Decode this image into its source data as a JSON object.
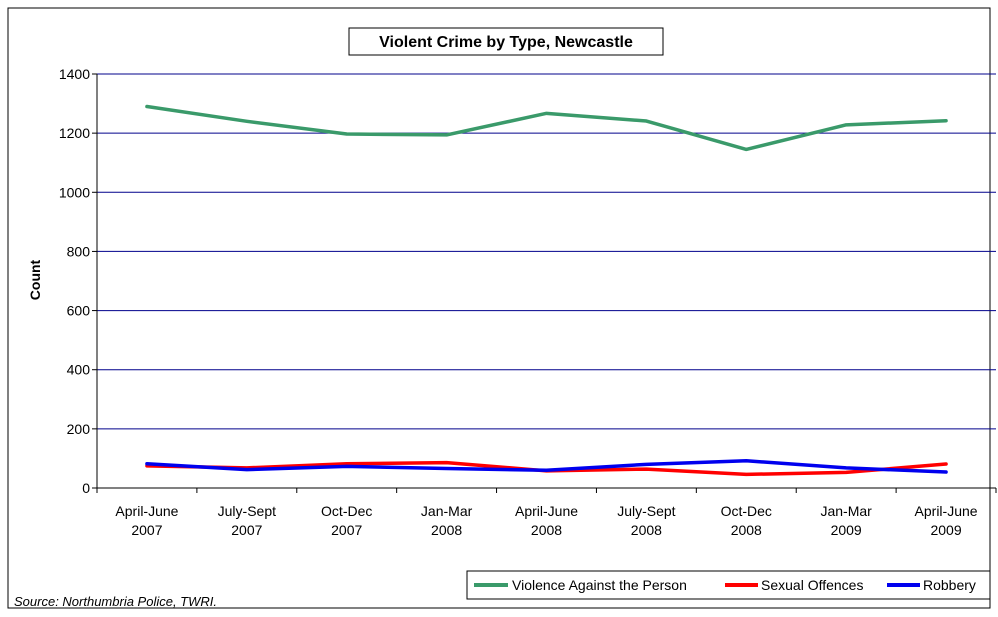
{
  "chart_data": {
    "type": "line",
    "title": "Violent Crime by Type, Newcastle",
    "xlabel": "",
    "ylabel": "Count",
    "ylim": [
      0,
      1400
    ],
    "yticks": [
      0,
      200,
      400,
      600,
      800,
      1000,
      1200,
      1400
    ],
    "grid": true,
    "legend_position": "bottom-right",
    "categories": [
      [
        "April-June",
        "2007"
      ],
      [
        "July-Sept",
        "2007"
      ],
      [
        "Oct-Dec",
        "2007"
      ],
      [
        "Jan-Mar",
        "2008"
      ],
      [
        "April-June",
        "2008"
      ],
      [
        "July-Sept",
        "2008"
      ],
      [
        "Oct-Dec",
        "2008"
      ],
      [
        "Jan-Mar",
        "2009"
      ],
      [
        "April-June",
        "2009"
      ]
    ],
    "series": [
      {
        "name": "Violence Against the Person",
        "color": "#3a9a6a",
        "values": [
          1290,
          1240,
          1197,
          1194,
          1267,
          1241,
          1145,
          1228,
          1242
        ]
      },
      {
        "name": "Sexual Offences",
        "color": "#ff0000",
        "values": [
          75,
          68,
          82,
          86,
          58,
          64,
          46,
          53,
          81
        ]
      },
      {
        "name": "Robbery",
        "color": "#0000ee",
        "values": [
          82,
          62,
          73,
          66,
          60,
          80,
          92,
          68,
          54
        ]
      }
    ],
    "source": "Source: Northumbria Police, TWRI."
  }
}
